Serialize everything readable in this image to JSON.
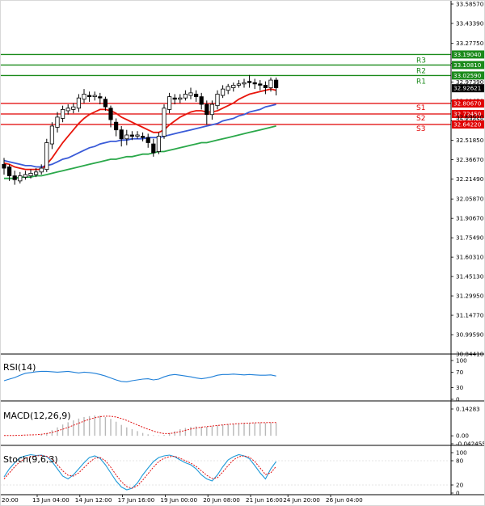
{
  "chart_data": {
    "type": "candlestick",
    "main_panel": {
      "y_ticks": [
        "33.58570",
        "33.43390",
        "33.27750",
        "33.12130",
        "32.97390",
        "32.82650",
        "32.67030",
        "32.51850",
        "32.36670",
        "32.21490",
        "32.05870",
        "31.90670",
        "31.75490",
        "31.60310",
        "31.45130",
        "31.29950",
        "31.14770",
        "30.99590",
        "30.84410"
      ],
      "ylim": [
        30.8441,
        33.5857
      ],
      "last_price": 32.92621,
      "candles": [
        [
          32.33,
          32.3,
          32.25,
          32.38
        ],
        [
          32.31,
          32.24,
          32.2,
          32.33
        ],
        [
          32.24,
          32.21,
          32.17,
          32.28
        ],
        [
          32.2,
          32.24,
          32.18,
          32.27
        ],
        [
          32.23,
          32.25,
          32.21,
          32.28
        ],
        [
          32.24,
          32.26,
          32.22,
          32.29
        ],
        [
          32.25,
          32.27,
          32.23,
          32.3
        ],
        [
          32.27,
          32.3,
          32.25,
          32.33
        ],
        [
          32.29,
          32.5,
          32.27,
          32.53
        ],
        [
          32.49,
          32.63,
          32.45,
          32.66
        ],
        [
          32.62,
          32.7,
          32.58,
          32.74
        ],
        [
          32.69,
          32.76,
          32.66,
          32.79
        ],
        [
          32.75,
          32.77,
          32.72,
          32.8
        ],
        [
          32.76,
          32.78,
          32.73,
          32.81
        ],
        [
          32.77,
          32.85,
          32.74,
          32.88
        ],
        [
          32.84,
          32.88,
          32.81,
          32.92
        ],
        [
          32.87,
          32.86,
          32.82,
          32.9
        ],
        [
          32.86,
          32.87,
          32.83,
          32.9
        ],
        [
          32.86,
          32.85,
          32.8,
          32.89
        ],
        [
          32.84,
          32.78,
          32.75,
          32.86
        ],
        [
          32.77,
          32.68,
          32.62,
          32.79
        ],
        [
          32.66,
          32.6,
          32.55,
          32.69
        ],
        [
          32.6,
          32.53,
          32.47,
          32.63
        ],
        [
          32.53,
          32.56,
          32.48,
          32.6
        ],
        [
          32.56,
          32.55,
          32.52,
          32.59
        ],
        [
          32.55,
          32.56,
          32.53,
          32.59
        ],
        [
          32.55,
          32.54,
          32.51,
          32.58
        ],
        [
          32.54,
          32.5,
          32.46,
          32.57
        ],
        [
          32.49,
          32.42,
          32.39,
          32.53
        ],
        [
          32.43,
          32.55,
          32.41,
          32.58
        ],
        [
          32.55,
          32.77,
          32.53,
          32.8
        ],
        [
          32.76,
          32.86,
          32.73,
          32.89
        ],
        [
          32.85,
          32.84,
          32.8,
          32.88
        ],
        [
          32.84,
          32.85,
          32.81,
          32.88
        ],
        [
          32.85,
          32.88,
          32.83,
          32.91
        ],
        [
          32.87,
          32.89,
          32.84,
          32.93
        ],
        [
          32.88,
          32.86,
          32.82,
          32.91
        ],
        [
          32.86,
          32.8,
          32.76,
          32.89
        ],
        [
          32.8,
          32.72,
          32.64,
          32.83
        ],
        [
          32.72,
          32.8,
          32.68,
          32.83
        ],
        [
          32.79,
          32.88,
          32.76,
          32.91
        ],
        [
          32.87,
          32.92,
          32.85,
          32.95
        ],
        [
          32.91,
          32.94,
          32.88,
          32.96
        ],
        [
          32.93,
          32.95,
          32.9,
          32.97
        ],
        [
          32.95,
          32.96,
          32.93,
          32.99
        ],
        [
          32.96,
          32.97,
          32.93,
          33.0
        ],
        [
          32.98,
          32.97,
          32.93,
          33.03
        ],
        [
          32.97,
          32.96,
          32.92,
          33.0
        ],
        [
          32.96,
          32.95,
          32.91,
          32.99
        ],
        [
          32.95,
          32.93,
          32.88,
          32.98
        ],
        [
          32.93,
          32.99,
          32.9,
          33.01
        ],
        [
          32.99,
          32.93,
          32.87,
          33.01
        ]
      ],
      "ma_red": [
        32.34,
        32.33,
        32.31,
        32.3,
        32.29,
        32.29,
        32.29,
        32.29,
        32.33,
        32.38,
        32.44,
        32.5,
        32.55,
        32.6,
        32.65,
        32.69,
        32.72,
        32.74,
        32.76,
        32.76,
        32.75,
        32.73,
        32.7,
        32.68,
        32.66,
        32.64,
        32.62,
        32.6,
        32.58,
        32.58,
        32.6,
        32.64,
        32.67,
        32.7,
        32.72,
        32.74,
        32.75,
        32.75,
        32.74,
        32.74,
        32.75,
        32.77,
        32.79,
        32.81,
        32.84,
        32.86,
        32.88,
        32.89,
        32.9,
        32.91,
        32.92,
        32.91
      ],
      "ma_blue": [
        32.36,
        32.35,
        32.34,
        32.33,
        32.32,
        32.32,
        32.31,
        32.31,
        32.32,
        32.33,
        32.35,
        32.37,
        32.38,
        32.4,
        32.42,
        32.44,
        32.46,
        32.47,
        32.49,
        32.5,
        32.51,
        32.51,
        32.52,
        32.52,
        32.53,
        32.53,
        32.53,
        32.54,
        32.54,
        32.54,
        32.55,
        32.56,
        32.57,
        32.58,
        32.59,
        32.6,
        32.61,
        32.62,
        32.63,
        32.64,
        32.65,
        32.67,
        32.68,
        32.69,
        32.71,
        32.72,
        32.74,
        32.75,
        32.76,
        32.78,
        32.79,
        32.8
      ],
      "ma_green": [
        32.22,
        32.22,
        32.22,
        32.23,
        32.23,
        32.23,
        32.24,
        32.24,
        32.25,
        32.26,
        32.27,
        32.28,
        32.29,
        32.3,
        32.31,
        32.32,
        32.33,
        32.34,
        32.35,
        32.36,
        32.37,
        32.37,
        32.38,
        32.39,
        32.39,
        32.4,
        32.41,
        32.41,
        32.42,
        32.43,
        32.43,
        32.44,
        32.45,
        32.46,
        32.47,
        32.48,
        32.49,
        32.5,
        32.5,
        32.51,
        32.52,
        32.53,
        32.54,
        32.55,
        32.56,
        32.57,
        32.58,
        32.59,
        32.6,
        32.61,
        32.62,
        32.63
      ],
      "levels": [
        {
          "label": "R3",
          "value": "33.19040",
          "kind": "resistance"
        },
        {
          "label": "R2",
          "value": "33.10810",
          "kind": "resistance"
        },
        {
          "label": "R1",
          "value": "33.02590",
          "kind": "resistance"
        },
        {
          "label": "S1",
          "value": "32.80670",
          "kind": "support"
        },
        {
          "label": "S2",
          "value": "32.72450",
          "kind": "support"
        },
        {
          "label": "S3",
          "value": "32.64220",
          "kind": "support"
        }
      ],
      "partial_label": "32.69920"
    },
    "rsi": {
      "label": "RSI(14)",
      "y_ticks": [
        "100",
        "70",
        "30",
        "0"
      ],
      "ylim": [
        0,
        100
      ],
      "values": [
        48,
        52,
        56,
        62,
        67,
        69,
        71,
        72,
        72,
        71,
        70,
        71,
        72,
        70,
        68,
        70,
        69,
        67,
        64,
        60,
        55,
        50,
        46,
        45,
        48,
        50,
        52,
        53,
        50,
        52,
        58,
        62,
        64,
        62,
        60,
        58,
        55,
        53,
        55,
        58,
        62,
        64,
        64,
        65,
        64,
        63,
        64,
        63,
        62,
        62,
        63,
        60
      ]
    },
    "macd": {
      "label": "MACD(12,26,9)",
      "y_ticks": [
        "0.14283",
        "0.00",
        "-0.042455"
      ],
      "ylim": [
        -0.042455,
        0.14283
      ],
      "histogram": [
        0.0,
        0.0,
        0.0,
        0.0,
        0.0,
        0.0,
        0.0,
        0.005,
        0.015,
        0.03,
        0.045,
        0.06,
        0.072,
        0.082,
        0.092,
        0.1,
        0.105,
        0.108,
        0.107,
        0.1,
        0.09,
        0.075,
        0.058,
        0.045,
        0.035,
        0.025,
        0.015,
        0.008,
        0.003,
        0.002,
        0.005,
        0.015,
        0.025,
        0.035,
        0.042,
        0.048,
        0.05,
        0.048,
        0.048,
        0.05,
        0.055,
        0.06,
        0.062,
        0.064,
        0.066,
        0.067,
        0.068,
        0.068,
        0.068,
        0.068,
        0.069,
        0.068
      ],
      "signal": [
        0.002,
        0.002,
        0.002,
        0.003,
        0.004,
        0.005,
        0.006,
        0.008,
        0.012,
        0.018,
        0.026,
        0.035,
        0.045,
        0.056,
        0.067,
        0.078,
        0.088,
        0.096,
        0.102,
        0.105,
        0.104,
        0.1,
        0.092,
        0.082,
        0.07,
        0.058,
        0.046,
        0.035,
        0.025,
        0.017,
        0.012,
        0.012,
        0.016,
        0.022,
        0.029,
        0.036,
        0.042,
        0.046,
        0.049,
        0.052,
        0.055,
        0.058,
        0.061,
        0.063,
        0.065,
        0.067,
        0.068,
        0.069,
        0.07,
        0.07,
        0.071,
        0.071
      ]
    },
    "stoch": {
      "label": "Stoch(9,6,3)",
      "y_ticks": [
        "100",
        "80",
        "20",
        "0"
      ],
      "ylim": [
        0,
        100
      ],
      "main": [
        40,
        60,
        75,
        88,
        92,
        95,
        93,
        94,
        90,
        78,
        60,
        42,
        35,
        45,
        60,
        75,
        88,
        92,
        86,
        70,
        50,
        30,
        15,
        8,
        12,
        25,
        45,
        62,
        78,
        88,
        92,
        94,
        90,
        82,
        75,
        70,
        60,
        45,
        35,
        30,
        45,
        65,
        82,
        90,
        95,
        92,
        85,
        68,
        50,
        35,
        60,
        78
      ],
      "signal": [
        35,
        50,
        65,
        78,
        86,
        90,
        92,
        93,
        91,
        84,
        70,
        55,
        44,
        42,
        50,
        63,
        76,
        86,
        88,
        80,
        64,
        45,
        28,
        16,
        12,
        18,
        32,
        48,
        64,
        78,
        86,
        90,
        91,
        86,
        80,
        74,
        66,
        55,
        44,
        36,
        38,
        52,
        68,
        82,
        90,
        92,
        89,
        78,
        62,
        46,
        50,
        66
      ]
    },
    "x_labels": [
      "20:00",
      "13 Jun 04:00",
      "14 Jun 12:00",
      "17 Jun 16:00",
      "19 Jun 00:00",
      "20 Jun 08:00",
      "21 Jun 16:00",
      "24 Jun 20:00",
      "26 Jun 04:00"
    ],
    "x_label_bar_index": [
      -2,
      5,
      13,
      21,
      29,
      37,
      45,
      52,
      60
    ],
    "colors": {
      "up_body": "#ffffff",
      "down_body": "#000000",
      "ma_red": "#e8160c",
      "ma_blue": "#3a5bd8",
      "ma_green": "#2aa84a",
      "resistance": "#1a8a1a",
      "support": "#e00000",
      "rsi": "#1e7fd8",
      "macd_signal": "#e01010",
      "stoch_main": "#1e9ad8",
      "stoch_signal": "#e01010",
      "price_tag": "#000000"
    }
  }
}
